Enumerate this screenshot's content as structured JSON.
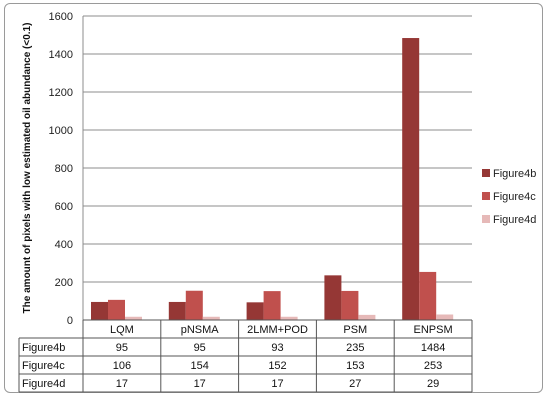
{
  "chart_data": {
    "type": "bar",
    "categories": [
      "LQM",
      "pNSMA",
      "2LMM+POD",
      "PSM",
      "ENPSM"
    ],
    "series": [
      {
        "name": "Figure4b",
        "values": [
          95,
          95,
          93,
          235,
          1484
        ],
        "color": "#953735"
      },
      {
        "name": "Figure4c",
        "values": [
          106,
          154,
          152,
          153,
          253
        ],
        "color": "#c0504d"
      },
      {
        "name": "Figure4d",
        "values": [
          17,
          17,
          17,
          27,
          29
        ],
        "color": "#e6b9b8"
      }
    ],
    "ylabel": "The amount of pixels with low estimated oil abundance (<0.1)",
    "ylim": [
      0,
      1600
    ],
    "yticks": [
      0,
      200,
      400,
      600,
      800,
      1000,
      1200,
      1400,
      1600
    ],
    "grid": true,
    "legend_position": "right",
    "data_table": true
  }
}
